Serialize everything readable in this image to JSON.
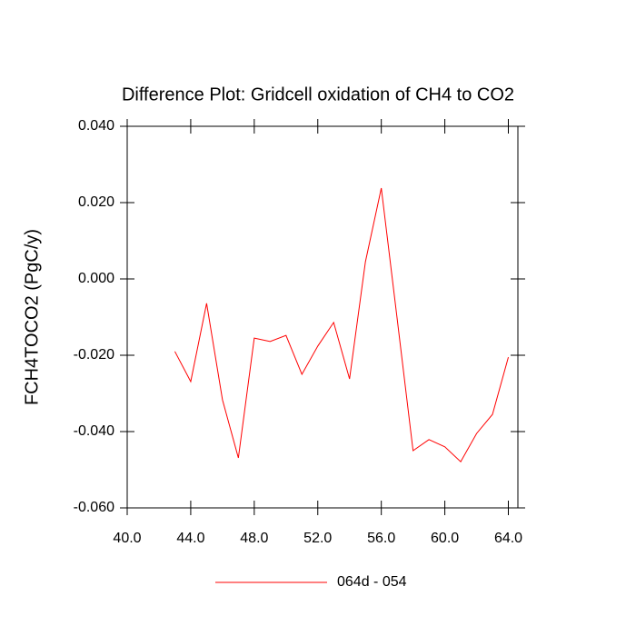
{
  "chart_data": {
    "type": "line",
    "title": "Difference Plot: Gridcell oxidation of CH4 to CO2",
    "y_label": "FCH4TOCO2  (PgC/y)",
    "x": [
      43,
      44,
      45,
      46,
      47,
      48,
      49,
      50,
      51,
      52,
      53,
      54,
      55,
      56,
      57,
      58,
      59,
      60,
      61,
      62,
      63,
      64
    ],
    "series": [
      {
        "name": "064d - 054",
        "color": "#ff0000",
        "values": [
          -0.019,
          -0.0269,
          -0.0064,
          -0.0317,
          -0.0469,
          -0.0155,
          -0.0164,
          -0.0148,
          -0.025,
          -0.0176,
          -0.0114,
          -0.0262,
          0.0045,
          0.0238,
          -0.0105,
          -0.045,
          -0.0421,
          -0.044,
          -0.0479,
          -0.0405,
          -0.0355,
          -0.0205
        ]
      }
    ],
    "xlim": [
      40,
      64.6
    ],
    "ylim": [
      -0.06,
      0.04
    ],
    "xticks": [
      {
        "value": 40,
        "label": "40.0"
      },
      {
        "value": 44,
        "label": "44.0"
      },
      {
        "value": 48,
        "label": "48.0"
      },
      {
        "value": 52,
        "label": "52.0"
      },
      {
        "value": 56,
        "label": "56.0"
      },
      {
        "value": 60,
        "label": "60.0"
      },
      {
        "value": 64,
        "label": "64.0"
      }
    ],
    "yticks": [
      {
        "value": -0.06,
        "label": "-0.060"
      },
      {
        "value": -0.04,
        "label": "-0.040"
      },
      {
        "value": -0.02,
        "label": "-0.020"
      },
      {
        "value": 0,
        "label": "0.000"
      },
      {
        "value": 0.02,
        "label": "0.020"
      },
      {
        "value": 0.04,
        "label": "0.040"
      }
    ],
    "grid": false,
    "legend_position": "bottom"
  }
}
